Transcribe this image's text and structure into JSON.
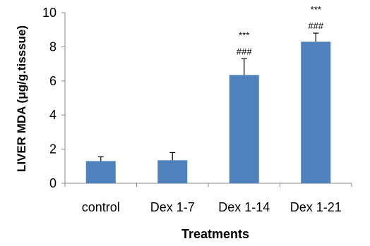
{
  "chart_data": {
    "type": "bar",
    "title": "",
    "xlabel": "Treatments",
    "ylabel": "LIVER MDA (μg/g.tisssue)",
    "ylim": [
      0,
      10
    ],
    "yticks": [
      0,
      2,
      4,
      6,
      8,
      10
    ],
    "grid": false,
    "legend": "none",
    "bar_color": "#4F81BD",
    "categories": [
      "control",
      "Dex 1-7",
      "Dex 1-14",
      "Dex 1-21"
    ],
    "values": [
      1.3,
      1.35,
      6.35,
      8.3
    ],
    "error_bars": [
      0.25,
      0.45,
      0.95,
      0.5
    ],
    "annotations": [
      {
        "category": "Dex 1-14",
        "lines": [
          "***",
          "###"
        ]
      },
      {
        "category": "Dex 1-21",
        "lines": [
          "***",
          "###"
        ]
      }
    ]
  }
}
